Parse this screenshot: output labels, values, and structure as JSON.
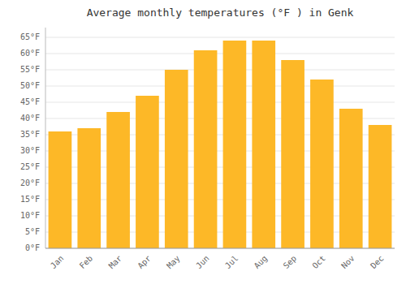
{
  "chart_data": {
    "type": "bar",
    "title": "Average monthly temperatures (°F ) in Genk",
    "categories": [
      "Jan",
      "Feb",
      "Mar",
      "Apr",
      "May",
      "Jun",
      "Jul",
      "Aug",
      "Sep",
      "Oct",
      "Nov",
      "Dec"
    ],
    "values": [
      36,
      37,
      42,
      47,
      55,
      61,
      64,
      64,
      58,
      52,
      43,
      38
    ],
    "color": "#FDB827",
    "ylim": [
      0,
      68
    ],
    "yticks": [
      {
        "value": 0,
        "label": "0°F"
      },
      {
        "value": 5,
        "label": "5°F"
      },
      {
        "value": 10,
        "label": "10°F"
      },
      {
        "value": 15,
        "label": "15°F"
      },
      {
        "value": 20,
        "label": "20°F"
      },
      {
        "value": 25,
        "label": "25°F"
      },
      {
        "value": 30,
        "label": "30°F"
      },
      {
        "value": 35,
        "label": "35°F"
      },
      {
        "value": 40,
        "label": "40°F"
      },
      {
        "value": 45,
        "label": "45°F"
      },
      {
        "value": 50,
        "label": "50°F"
      },
      {
        "value": 55,
        "label": "55°F"
      },
      {
        "value": 60,
        "label": "60°F"
      },
      {
        "value": 65,
        "label": "65°F"
      }
    ],
    "grid": true
  }
}
